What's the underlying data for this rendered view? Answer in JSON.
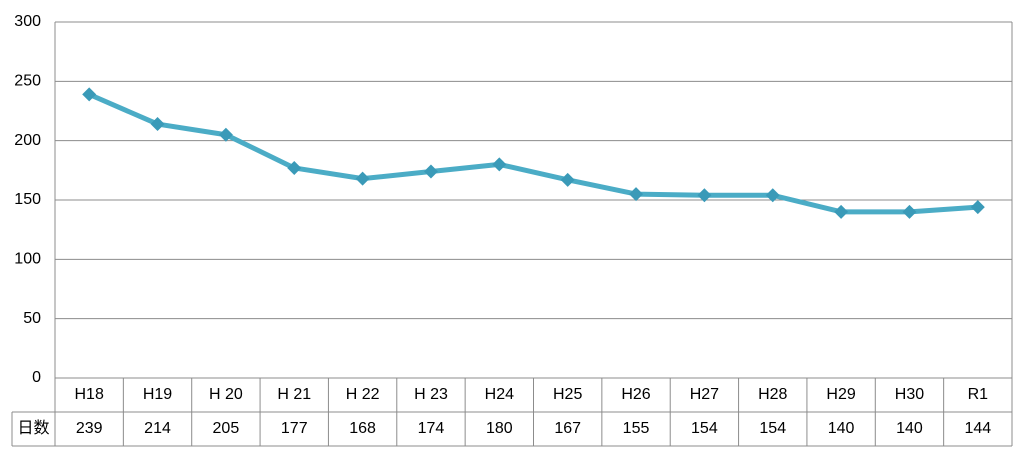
{
  "chart_data": {
    "type": "line",
    "categories": [
      "H18",
      "H19",
      "H 20",
      "H 21",
      "H 22",
      "H 23",
      "H24",
      "H25",
      "H26",
      "H27",
      "H28",
      "H29",
      "H30",
      "R1"
    ],
    "series": [
      {
        "name": "日数",
        "color": "#4bacc6",
        "values": [
          239,
          214,
          205,
          177,
          168,
          174,
          180,
          167,
          155,
          154,
          154,
          140,
          140,
          144
        ]
      }
    ],
    "ylim": [
      0,
      300
    ],
    "yticks": [
      0,
      50,
      100,
      150,
      200,
      250,
      300
    ],
    "grid": true
  }
}
